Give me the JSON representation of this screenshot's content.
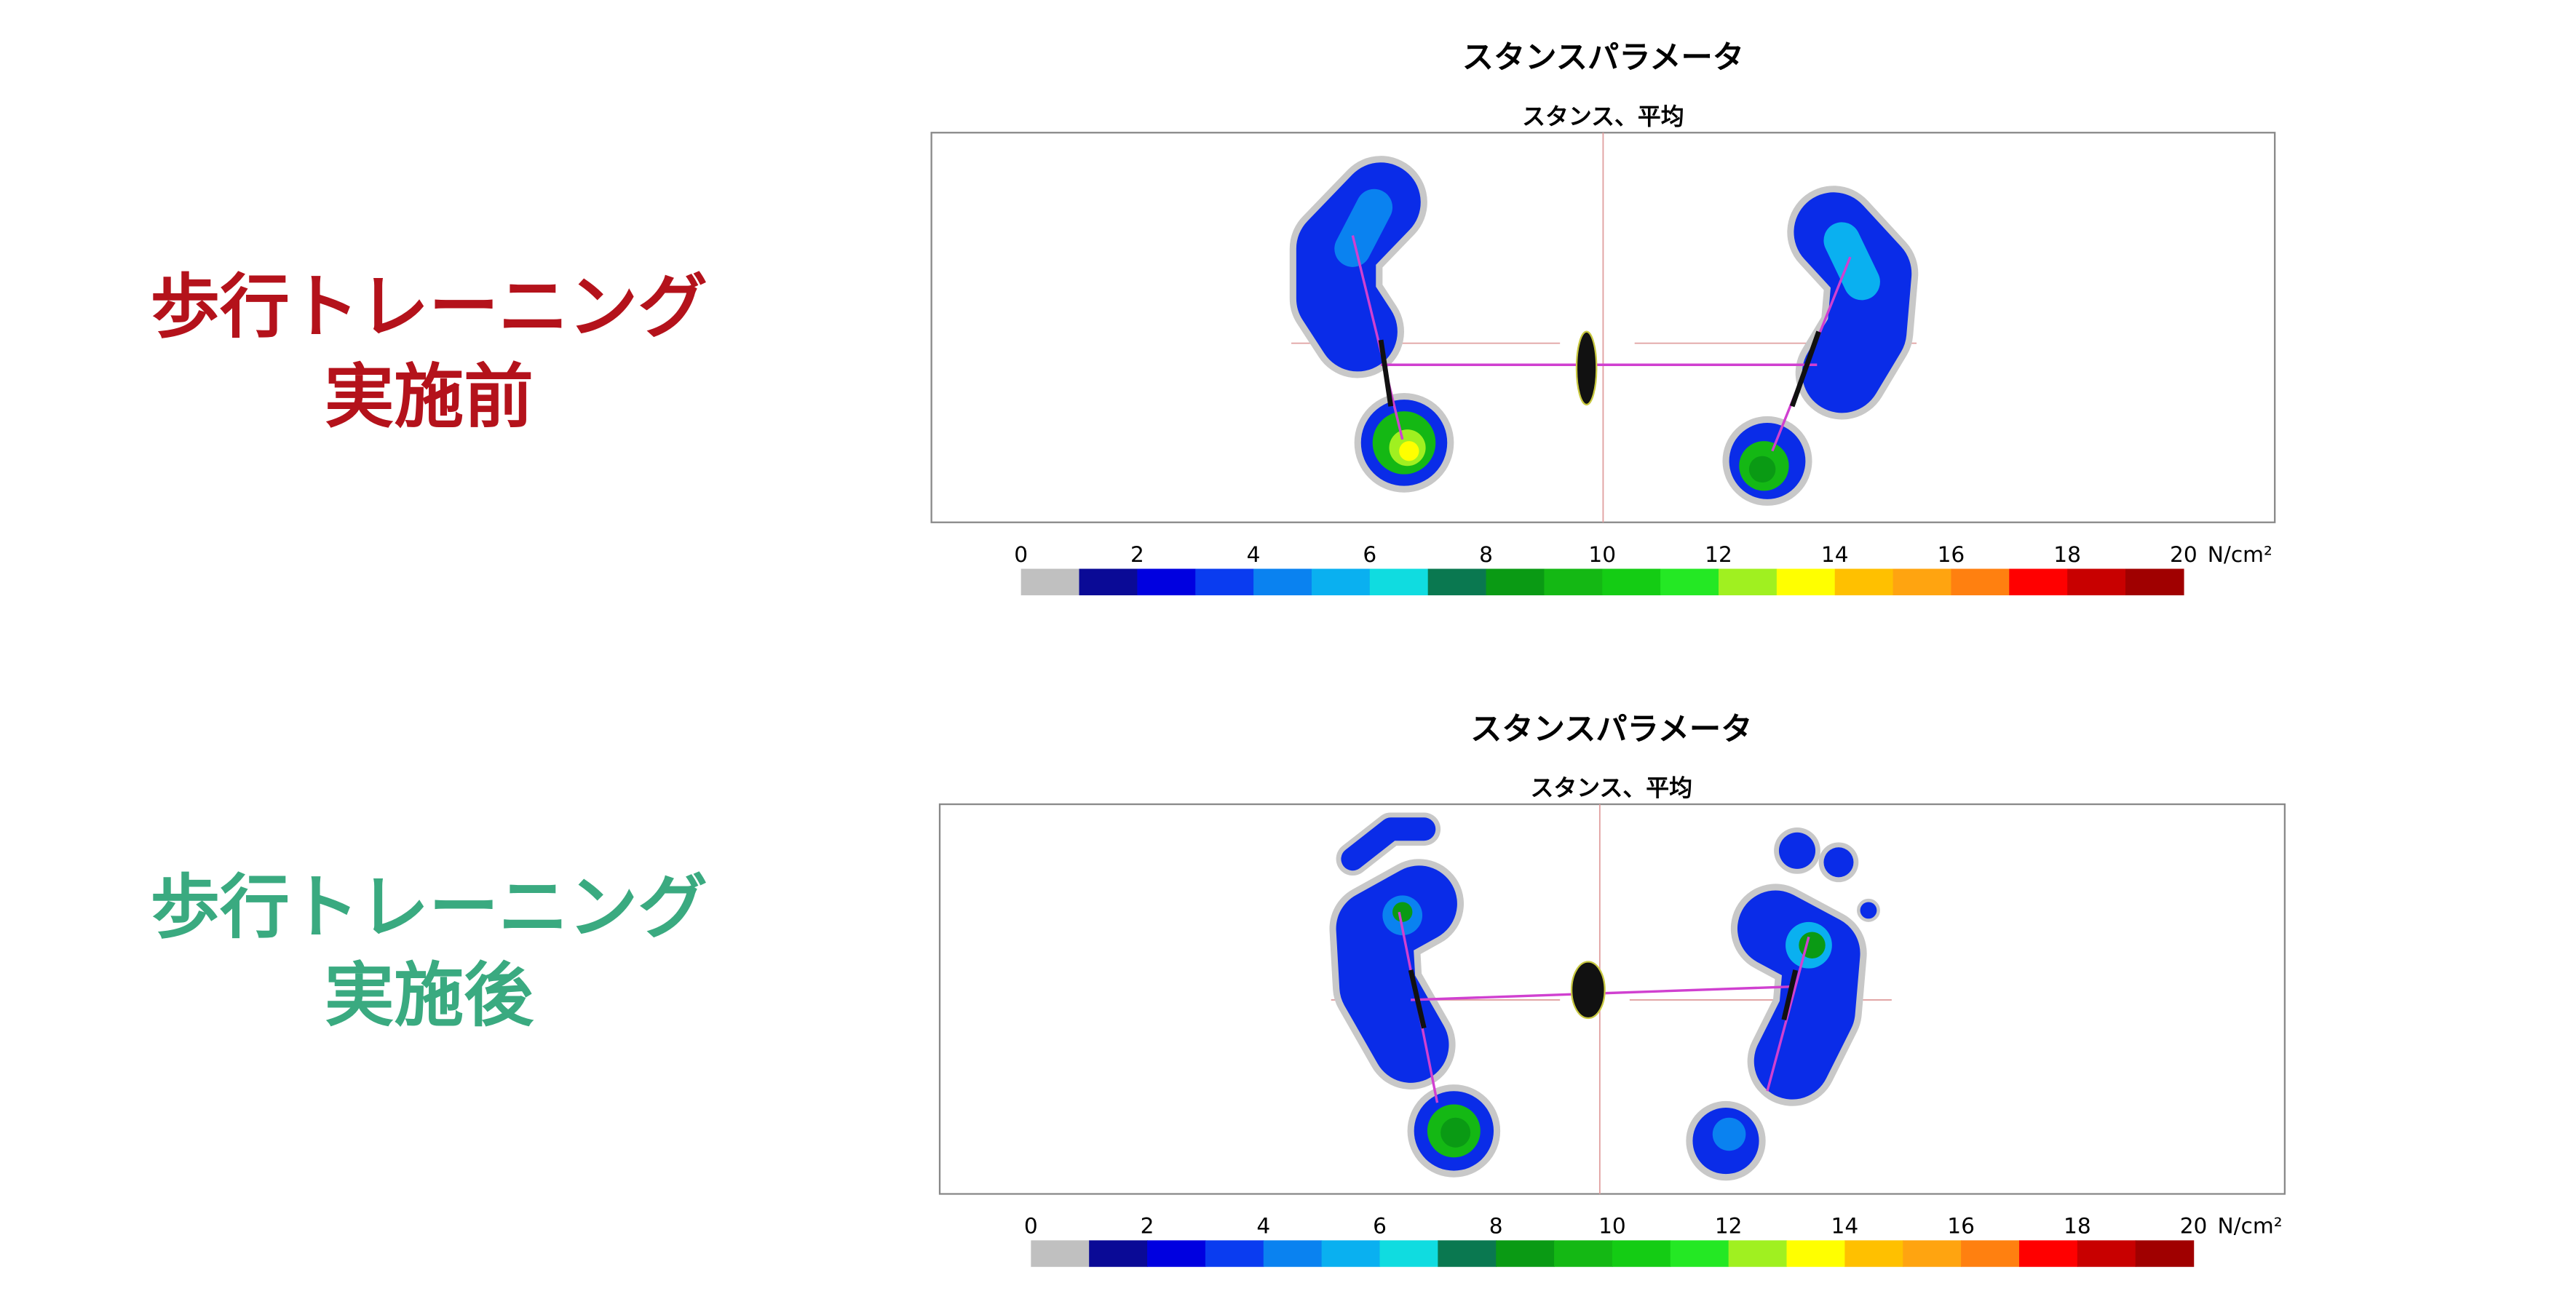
{
  "panels": [
    {
      "label_lines": [
        "歩行トレーニング",
        "実施前"
      ],
      "label_color": "#b4121b",
      "title": "スタンスパラメータ",
      "subtitle": "スタンス、平均",
      "colorbar": {
        "ticks": [
          0,
          2,
          4,
          6,
          8,
          10,
          12,
          14,
          16,
          18,
          20
        ],
        "unit": "N/cm²",
        "colors": [
          "#c0c0c0",
          "#0a0a96",
          "#0000e0",
          "#0a3cf0",
          "#0a82f0",
          "#0ab0f0",
          "#10dce0",
          "#0a7850",
          "#0a9a14",
          "#14b814",
          "#14cc14",
          "#24e824",
          "#a0f020",
          "#ffff00",
          "#ffc000",
          "#ffa410",
          "#ff8010",
          "#ff0000",
          "#c80000",
          "#a00000"
        ]
      }
    },
    {
      "label_lines": [
        "歩行トレーニング",
        "実施後"
      ],
      "label_color": "#3aaa80",
      "title": "スタンスパラメータ",
      "subtitle": "スタンス、平均",
      "colorbar": {
        "ticks": [
          0,
          2,
          4,
          6,
          8,
          10,
          12,
          14,
          16,
          18,
          20
        ],
        "unit": "N/cm²",
        "colors": [
          "#c0c0c0",
          "#0a0a96",
          "#0000e0",
          "#0a3cf0",
          "#0a82f0",
          "#0ab0f0",
          "#10dce0",
          "#0a7850",
          "#0a9a14",
          "#14b814",
          "#14cc14",
          "#24e824",
          "#a0f020",
          "#ffff00",
          "#ffc000",
          "#ffa410",
          "#ff8010",
          "#ff0000",
          "#c80000",
          "#a00000"
        ]
      }
    }
  ]
}
